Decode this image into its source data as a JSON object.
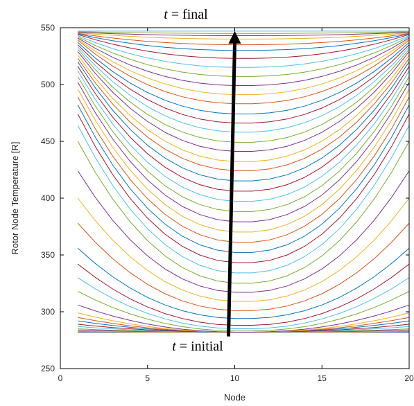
{
  "chart_data": {
    "type": "line",
    "xlabel": "Node",
    "ylabel": "Rotor Node Temperature [R]",
    "xlim": [
      0,
      20
    ],
    "ylim": [
      250,
      550
    ],
    "xticks": [
      0,
      5,
      10,
      15,
      20
    ],
    "yticks": [
      250,
      300,
      350,
      400,
      450,
      500,
      550
    ],
    "grid": false,
    "nodes": [
      1,
      2,
      3,
      4,
      5,
      6,
      7,
      8,
      9,
      10,
      11,
      12,
      13,
      14,
      15,
      16,
      17,
      18,
      19,
      20
    ],
    "t_initial_temperature": 282,
    "t_final_temperature": 547,
    "edge_temperatures": [
      282,
      282.5,
      283,
      284,
      285,
      287,
      289,
      292,
      295,
      299,
      306,
      318,
      330,
      342,
      356,
      378,
      400,
      424,
      450,
      464,
      474,
      482,
      489,
      496,
      502,
      507,
      512,
      516,
      520,
      523,
      526,
      529,
      531,
      533,
      535,
      537,
      539,
      540,
      541,
      542,
      543,
      544,
      544.5,
      545,
      545.5,
      546,
      546.5,
      547
    ],
    "center_temperatures": [
      282,
      282,
      282,
      282,
      282,
      282,
      282,
      282,
      282,
      282,
      282,
      283,
      285,
      288,
      294,
      301,
      309,
      317,
      325,
      334,
      343,
      352,
      361,
      370,
      379,
      388,
      397,
      406,
      415,
      424,
      432,
      441,
      449,
      458,
      466,
      474,
      483,
      491,
      499,
      507,
      515,
      523,
      530,
      535,
      540,
      543,
      545,
      547
    ],
    "profile_shape_exponent": 2.2,
    "colors": [
      "#0072BD",
      "#D95319",
      "#EDB120",
      "#7E2F8E",
      "#77AC30",
      "#4DBEEE",
      "#A2142F"
    ],
    "annotations": {
      "top_var": "t",
      "top_rest": " = final",
      "bottom_var": "t",
      "bottom_rest": " = initial",
      "arrow_x": 10,
      "arrow_from_y": 282,
      "arrow_to_y": 547
    }
  }
}
